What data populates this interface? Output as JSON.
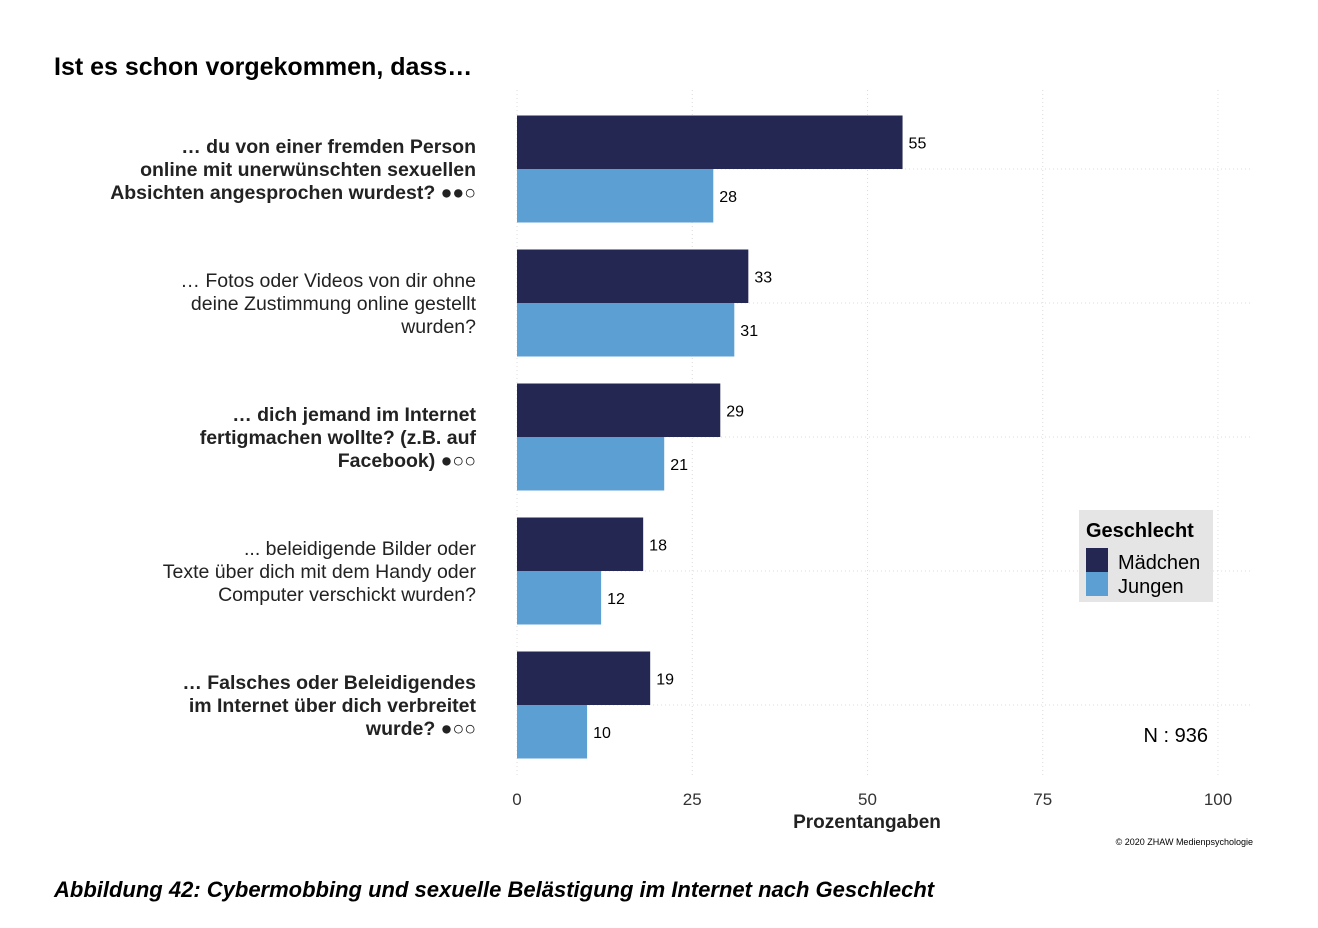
{
  "chart_data": {
    "type": "bar",
    "orientation": "horizontal",
    "title": "Ist es schon vorgekommen, dass…",
    "xlabel": "Prozentangaben",
    "ylabel": "",
    "xlim": [
      0,
      100
    ],
    "xticks": [
      0,
      25,
      50,
      75,
      100
    ],
    "grid": true,
    "categories": [
      {
        "lines": [
          "… du von einer fremden Person",
          "online mit unerwünschten sexuellen",
          "Absichten angesprochen wurdest? ●●○"
        ],
        "bold": true
      },
      {
        "lines": [
          "… Fotos oder Videos von dir ohne",
          "deine Zustimmung online gestellt",
          "wurden?"
        ],
        "bold": false
      },
      {
        "lines": [
          "… dich jemand im Internet",
          "fertigmachen wollte? (z.B. auf",
          "Facebook) ●○○"
        ],
        "bold": true
      },
      {
        "lines": [
          "... beleidigende Bilder oder",
          "Texte über dich mit dem Handy oder",
          "Computer verschickt wurden?"
        ],
        "bold": false
      },
      {
        "lines": [
          "… Falsches oder Beleidigendes",
          "im Internet über dich verbreitet",
          "wurde? ●○○"
        ],
        "bold": true
      }
    ],
    "series": [
      {
        "name": "Mädchen",
        "color": "#252753",
        "values": [
          55,
          33,
          29,
          18,
          19
        ]
      },
      {
        "name": "Jungen",
        "color": "#5b9fd3",
        "values": [
          28,
          31,
          21,
          12,
          10
        ]
      }
    ],
    "legend": {
      "title": "Geschlecht",
      "placement": "right",
      "background": "#e5e5e5"
    },
    "annotations": {
      "n_label": "N : 936",
      "copyright": "© 2020 ZHAW Medienpsychologie"
    }
  },
  "caption": "Abbildung 42: Cybermobbing und sexuelle Belästigung im Internet nach Geschlecht"
}
